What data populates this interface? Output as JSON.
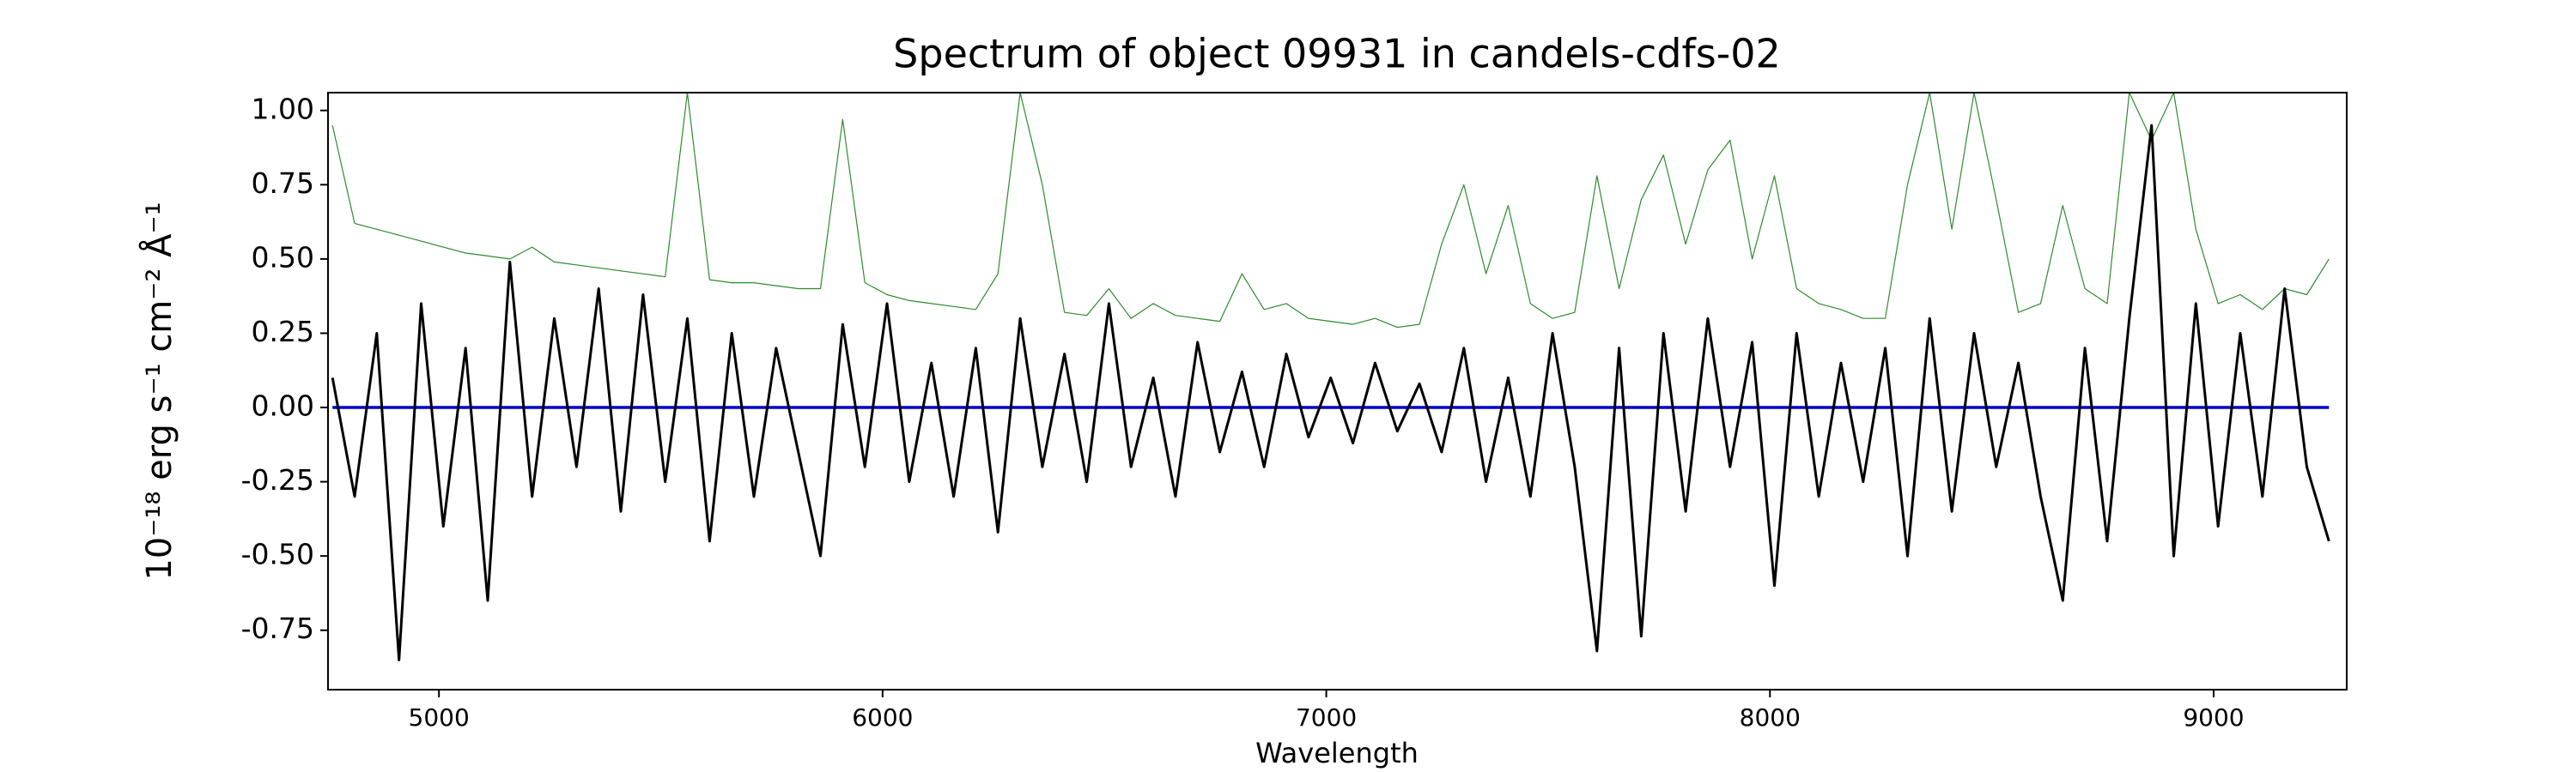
{
  "chart_data": {
    "type": "line",
    "title": "Spectrum of object 09931 in candels-cdfs-02",
    "x_label": "Wavelength",
    "y_label": "10⁻¹⁸ erg s⁻¹ cm⁻² Å⁻¹",
    "xlim": [
      4750,
      9300
    ],
    "ylim": [
      -0.95,
      1.06
    ],
    "xticks": [
      5000,
      6000,
      7000,
      8000,
      9000
    ],
    "yticks": [
      -0.75,
      {
        "value": -0.5,
        "label": "-0.50"
      },
      -0.25,
      {
        "value": 0,
        "label": "0.00"
      },
      0.25,
      {
        "value": 0.5,
        "label": "0.50"
      },
      0.75,
      {
        "value": 1,
        "label": "1.00"
      }
    ],
    "grid": false,
    "x": [
      4760,
      4810,
      4860,
      4910,
      4960,
      5010,
      5060,
      5110,
      5160,
      5210,
      5260,
      5310,
      5360,
      5410,
      5460,
      5510,
      5560,
      5610,
      5660,
      5710,
      5760,
      5810,
      5860,
      5910,
      5960,
      6010,
      6060,
      6110,
      6160,
      6210,
      6260,
      6310,
      6360,
      6410,
      6460,
      6510,
      6560,
      6610,
      6660,
      6710,
      6760,
      6810,
      6860,
      6910,
      6960,
      7010,
      7060,
      7110,
      7160,
      7210,
      7260,
      7310,
      7360,
      7410,
      7460,
      7510,
      7560,
      7610,
      7660,
      7710,
      7760,
      7810,
      7860,
      7910,
      7960,
      8010,
      8060,
      8110,
      8160,
      8210,
      8260,
      8310,
      8360,
      8410,
      8460,
      8510,
      8560,
      8610,
      8660,
      8710,
      8760,
      8810,
      8860,
      8910,
      8960,
      9010,
      9060,
      9110,
      9160,
      9210,
      9260
    ],
    "series": [
      {
        "color": "#2e8b2e",
        "width": 1.2,
        "values": [
          0.95,
          0.62,
          0.6,
          0.58,
          0.56,
          0.54,
          0.52,
          0.51,
          0.5,
          0.54,
          0.49,
          0.48,
          0.47,
          0.46,
          0.45,
          0.44,
          1.06,
          0.43,
          0.42,
          0.42,
          0.41,
          0.4,
          0.4,
          0.97,
          0.42,
          0.38,
          0.36,
          0.35,
          0.34,
          0.33,
          0.45,
          1.06,
          0.75,
          0.32,
          0.31,
          0.4,
          0.3,
          0.35,
          0.31,
          0.3,
          0.29,
          0.45,
          0.33,
          0.35,
          0.3,
          0.29,
          0.28,
          0.3,
          0.27,
          0.28,
          0.55,
          0.75,
          0.45,
          0.68,
          0.35,
          0.3,
          0.32,
          0.78,
          0.4,
          0.7,
          0.85,
          0.55,
          0.8,
          0.9,
          0.5,
          0.78,
          0.4,
          0.35,
          0.33,
          0.3,
          0.3,
          0.75,
          1.06,
          0.6,
          1.06,
          0.7,
          0.32,
          0.35,
          0.68,
          0.4,
          0.35,
          1.06,
          0.9,
          1.06,
          0.6,
          0.35,
          0.38,
          0.33,
          0.4,
          0.38,
          0.5
        ]
      },
      {
        "color": "#0000cc",
        "width": 3.5,
        "values": [
          0,
          0,
          0,
          0,
          0,
          0,
          0,
          0,
          0,
          0,
          0,
          0,
          0,
          0,
          0,
          0,
          0,
          0,
          0,
          0,
          0,
          0,
          0,
          0,
          0,
          0,
          0,
          0,
          0,
          0,
          0,
          0,
          0,
          0,
          0,
          0,
          0,
          0,
          0,
          0,
          0,
          0,
          0,
          0,
          0,
          0,
          0,
          0,
          0,
          0,
          0,
          0,
          0,
          0,
          0,
          0,
          0,
          0,
          0,
          0,
          0,
          0,
          0,
          0,
          0,
          0,
          0,
          0,
          0,
          0,
          0,
          0,
          0,
          0,
          0,
          0,
          0,
          0,
          0,
          0,
          0,
          0,
          0,
          0,
          0,
          0,
          0,
          0,
          0,
          0,
          0
        ]
      },
      {
        "color": "#000000",
        "width": 3,
        "values": [
          0.1,
          -0.3,
          0.25,
          -0.85,
          0.35,
          -0.4,
          0.2,
          -0.65,
          0.49,
          -0.3,
          0.3,
          -0.2,
          0.4,
          -0.35,
          0.38,
          -0.25,
          0.3,
          -0.45,
          0.25,
          -0.3,
          0.2,
          -0.15,
          -0.5,
          0.28,
          -0.2,
          0.35,
          -0.25,
          0.15,
          -0.3,
          0.2,
          -0.42,
          0.3,
          -0.2,
          0.18,
          -0.25,
          0.35,
          -0.2,
          0.1,
          -0.3,
          0.22,
          -0.15,
          0.12,
          -0.2,
          0.18,
          -0.1,
          0.1,
          -0.12,
          0.15,
          -0.08,
          0.08,
          -0.15,
          0.2,
          -0.25,
          0.1,
          -0.3,
          0.25,
          -0.2,
          -0.82,
          0.2,
          -0.77,
          0.25,
          -0.35,
          0.3,
          -0.2,
          0.22,
          -0.6,
          0.25,
          -0.3,
          0.15,
          -0.25,
          0.2,
          -0.5,
          0.3,
          -0.35,
          0.25,
          -0.2,
          0.15,
          -0.3,
          -0.65,
          0.2,
          -0.45,
          0.3,
          0.95,
          -0.5,
          0.35,
          -0.4,
          0.25,
          -0.3,
          0.4,
          -0.2,
          -0.45
        ]
      }
    ]
  }
}
